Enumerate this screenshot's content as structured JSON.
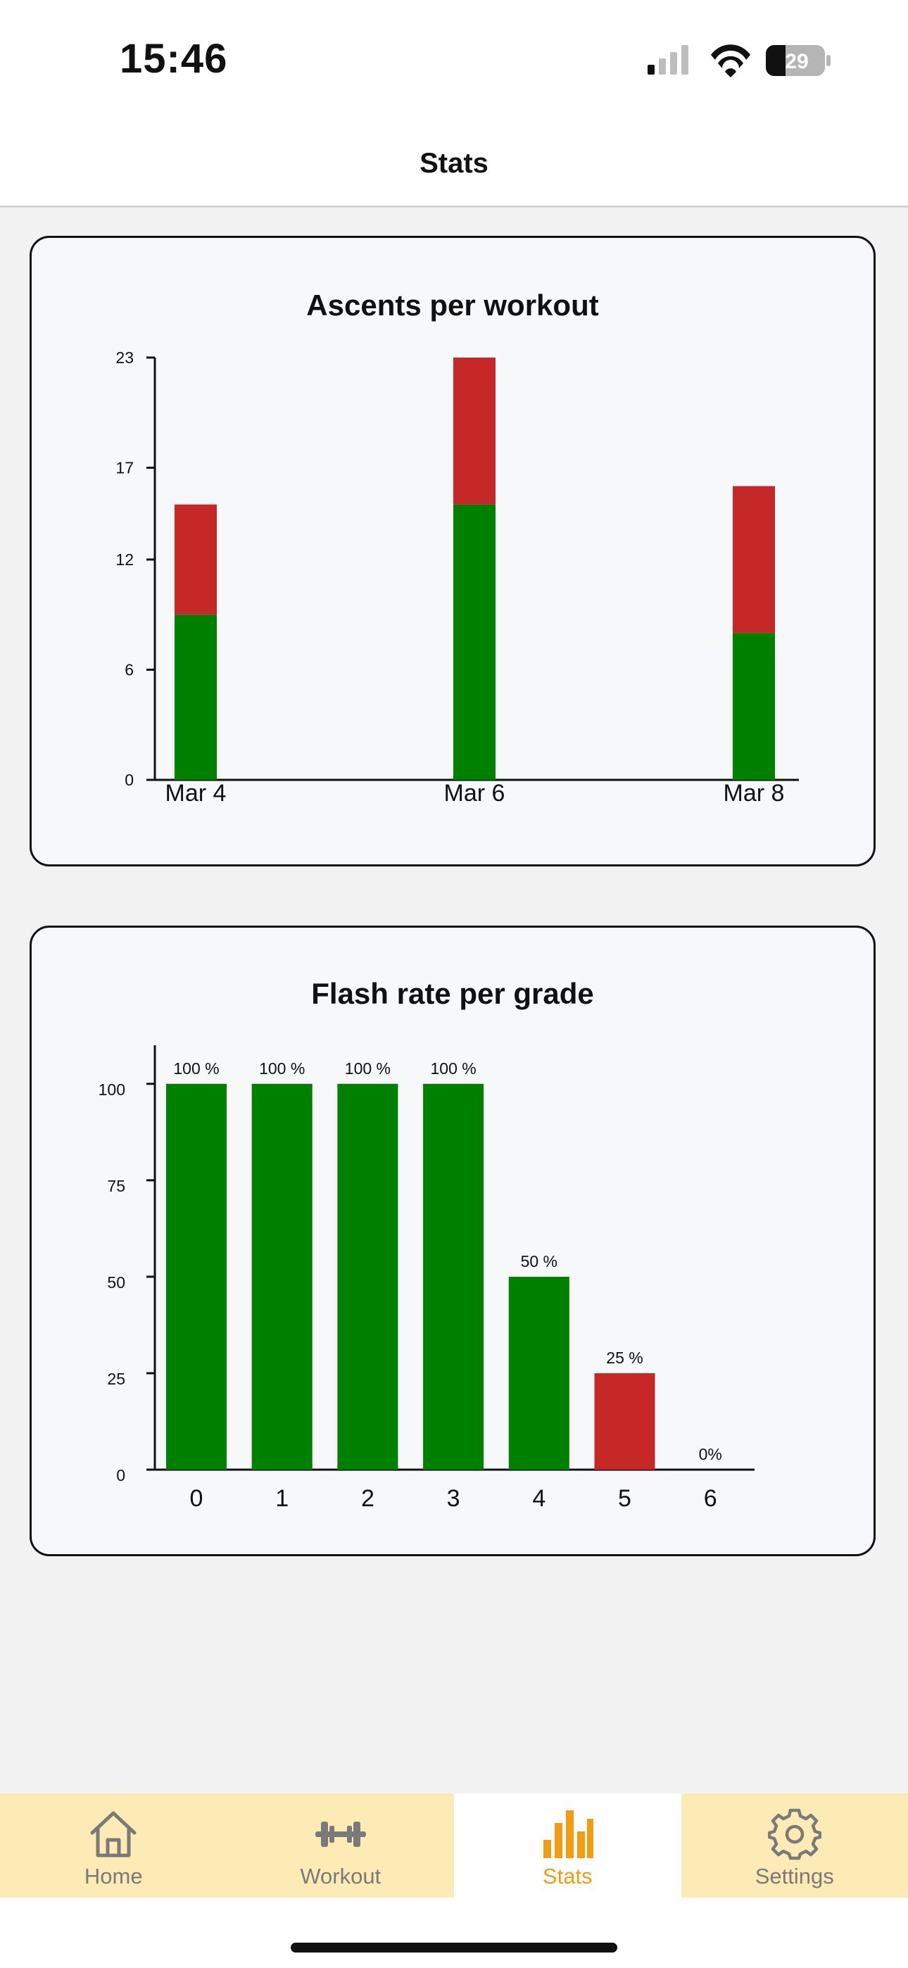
{
  "status_bar": {
    "time": "15:46",
    "battery": "29"
  },
  "nav": {
    "title": "Stats"
  },
  "charts": {
    "ascents": {
      "title": "Ascents per workout",
      "y_ticks": [
        "0",
        "6",
        "12",
        "17",
        "23"
      ],
      "colors": {
        "flash": "#008000",
        "other": "#c62828"
      }
    },
    "flash_rate": {
      "title": "Flash rate per grade",
      "y_ticks": [
        "0",
        "25",
        "50",
        "75",
        "100"
      ]
    }
  },
  "chart_data": [
    {
      "type": "bar",
      "stacked": true,
      "title": "Ascents per workout",
      "categories": [
        "Mar 4",
        "Mar 6",
        "Mar 8"
      ],
      "series": [
        {
          "values": [
            9,
            15,
            8
          ],
          "color": "#008000"
        },
        {
          "values": [
            6,
            8,
            8
          ],
          "color": "#c62828"
        }
      ],
      "ylim": [
        0,
        23
      ],
      "y_ticks": [
        0,
        6,
        12,
        17,
        23
      ],
      "grid": false
    },
    {
      "type": "bar",
      "title": "Flash rate per grade",
      "categories": [
        "0",
        "1",
        "2",
        "3",
        "4",
        "5",
        "6"
      ],
      "values": [
        100,
        100,
        100,
        100,
        50,
        25,
        0
      ],
      "data_labels": [
        "100 %",
        "100 %",
        "100 %",
        "100 %",
        "50 %",
        "25 %",
        "0%"
      ],
      "colors": [
        "#008000",
        "#008000",
        "#008000",
        "#008000",
        "#008000",
        "#c62828",
        "#c62828"
      ],
      "ylim": [
        0,
        110
      ],
      "y_ticks": [
        0,
        25,
        50,
        75,
        100
      ],
      "grid": false
    }
  ],
  "tabs": [
    {
      "label": "Home",
      "icon": "home-icon",
      "active": false
    },
    {
      "label": "Workout",
      "icon": "dumbbell-icon",
      "active": false
    },
    {
      "label": "Stats",
      "icon": "bar-chart-icon",
      "active": true
    },
    {
      "label": "Settings",
      "icon": "gear-icon",
      "active": false
    }
  ],
  "theme": {
    "accent": "#f29c11",
    "tab_background": "#fdebb5",
    "inactive": "#7a7a7a"
  }
}
